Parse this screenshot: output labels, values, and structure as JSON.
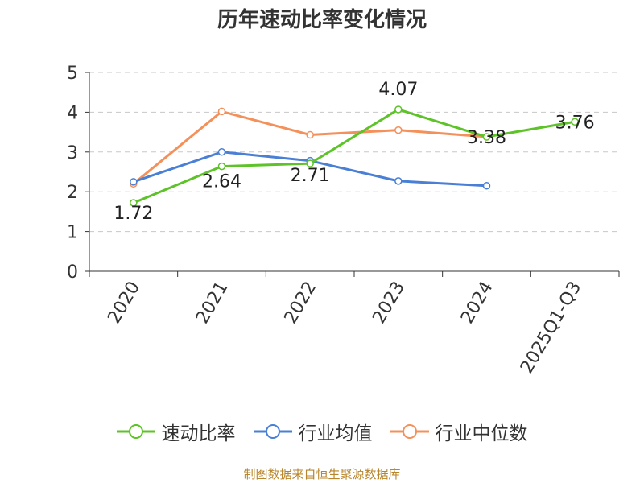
{
  "chart_data": {
    "type": "line",
    "title": "历年速动比率变化情况",
    "categories": [
      "2020",
      "2021",
      "2022",
      "2023",
      "2024",
      "2025Q1-Q3"
    ],
    "yticks": [
      "0",
      "1",
      "2",
      "3",
      "4",
      "5"
    ],
    "ylim": [
      0,
      5
    ],
    "grid": true,
    "legend_position": "bottom",
    "series": [
      {
        "name": "速动比率",
        "color": "#5dc328",
        "values": [
          1.72,
          2.64,
          2.71,
          4.07,
          3.38,
          3.76
        ],
        "labels": [
          "1.72",
          "2.64",
          "2.71",
          "4.07",
          "3.38",
          "3.76"
        ]
      },
      {
        "name": "行业均值",
        "color": "#4a7fd6",
        "values": [
          2.25,
          3.0,
          2.78,
          2.27,
          2.15,
          null
        ]
      },
      {
        "name": "行业中位数",
        "color": "#f4905a",
        "values": [
          2.2,
          4.02,
          3.43,
          3.55,
          3.38,
          null
        ]
      }
    ]
  },
  "source_text": "制图数据来自恒生聚源数据库"
}
